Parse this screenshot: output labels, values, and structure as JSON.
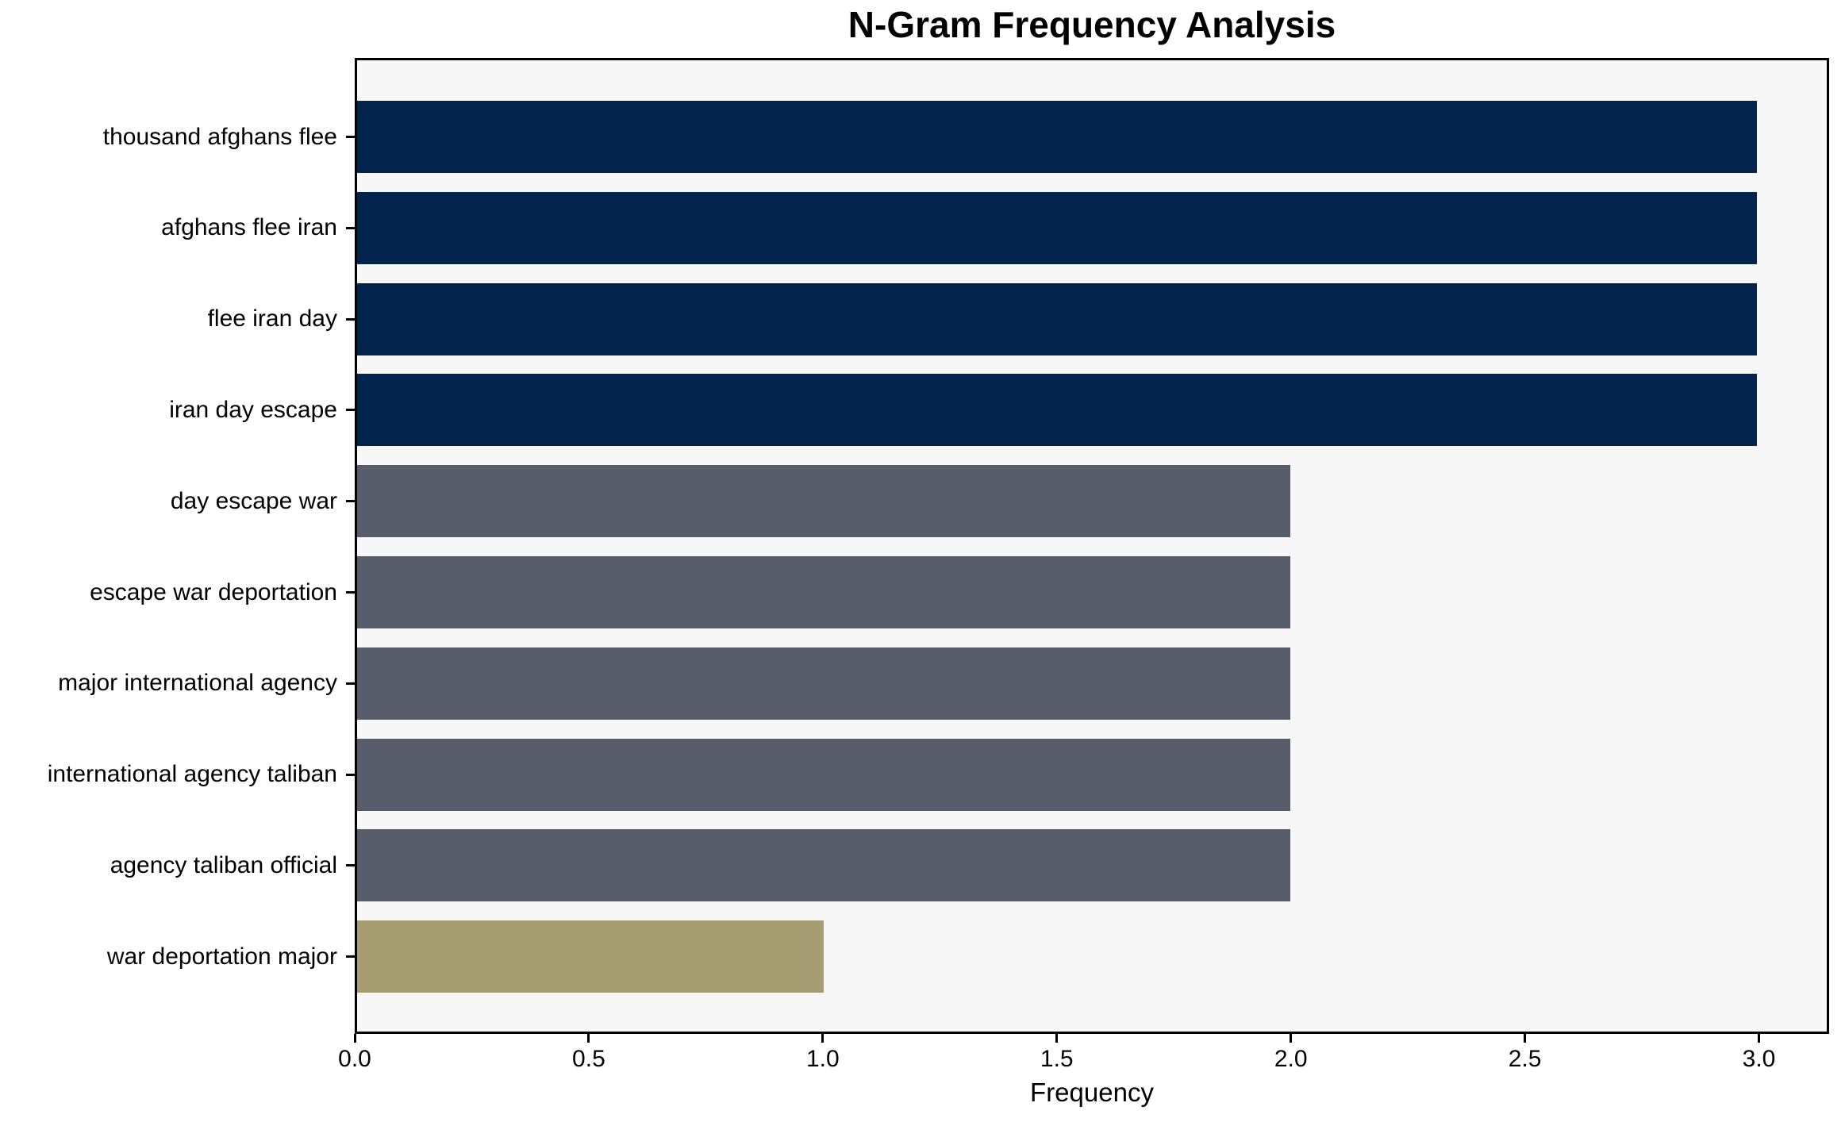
{
  "chart_data": {
    "type": "bar",
    "orientation": "horizontal",
    "title": "N-Gram Frequency Analysis",
    "xlabel": "Frequency",
    "ylabel": "",
    "categories": [
      "thousand afghans flee",
      "afghans flee iran",
      "flee iran day",
      "iran day escape",
      "day escape war",
      "escape war deportation",
      "major international agency",
      "international agency taliban",
      "agency taliban official",
      "war deportation major"
    ],
    "values": [
      3,
      3,
      3,
      3,
      2,
      2,
      2,
      2,
      2,
      1
    ],
    "bar_colors": [
      "#02234B",
      "#02234B",
      "#02234B",
      "#02234B",
      "#585D6C",
      "#585D6C",
      "#585D6C",
      "#585D6C",
      "#585D6C",
      "#A69D72"
    ],
    "xlim": [
      0,
      3.15
    ],
    "xticks": [
      0.0,
      0.5,
      1.0,
      1.5,
      2.0,
      2.5,
      3.0
    ],
    "xtick_labels": [
      "0.0",
      "0.5",
      "1.0",
      "1.5",
      "2.0",
      "2.5",
      "3.0"
    ],
    "grid": false,
    "legend": null,
    "colors": {
      "high_freq": "#02234B",
      "mid_freq": "#585D6C",
      "low_freq": "#A69D72",
      "plot_background": "#F7F7F7",
      "figure_background": "#FFFFFF",
      "axis": "#000000"
    }
  }
}
